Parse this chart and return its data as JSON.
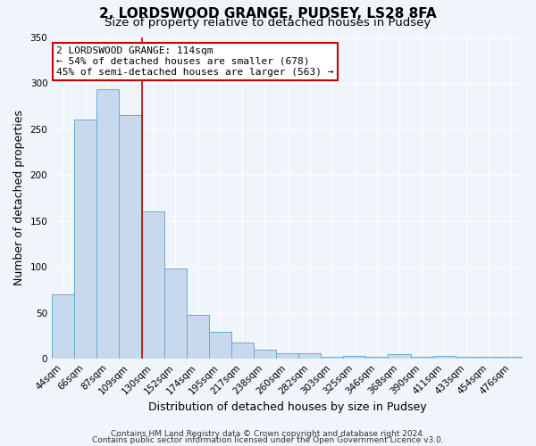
{
  "title": "2, LORDSWOOD GRANGE, PUDSEY, LS28 8FA",
  "subtitle": "Size of property relative to detached houses in Pudsey",
  "xlabel": "Distribution of detached houses by size in Pudsey",
  "ylabel": "Number of detached properties",
  "bar_labels": [
    "44sqm",
    "66sqm",
    "87sqm",
    "109sqm",
    "130sqm",
    "152sqm",
    "174sqm",
    "195sqm",
    "217sqm",
    "238sqm",
    "260sqm",
    "282sqm",
    "303sqm",
    "325sqm",
    "346sqm",
    "368sqm",
    "390sqm",
    "411sqm",
    "433sqm",
    "454sqm",
    "476sqm"
  ],
  "bar_values": [
    70,
    260,
    293,
    265,
    160,
    98,
    48,
    29,
    18,
    10,
    6,
    6,
    2,
    3,
    2,
    5,
    2,
    3,
    2,
    2,
    2
  ],
  "bar_color": "#c8d9ee",
  "bar_edge_color": "#6aaad4",
  "vline_x": 3.5,
  "vline_color": "#cc0000",
  "annotation_title": "2 LORDSWOOD GRANGE: 114sqm",
  "annotation_line1": "← 54% of detached houses are smaller (678)",
  "annotation_line2": "45% of semi-detached houses are larger (563) →",
  "annotation_box_color": "#ffffff",
  "annotation_box_edge": "#cc0000",
  "ylim": [
    0,
    350
  ],
  "yticks": [
    0,
    50,
    100,
    150,
    200,
    250,
    300,
    350
  ],
  "footer1": "Contains HM Land Registry data © Crown copyright and database right 2024.",
  "footer2": "Contains public sector information licensed under the Open Government Licence v3.0.",
  "bg_color": "#f0f4fb",
  "plot_bg_color": "#f0f4fb",
  "title_fontsize": 11,
  "subtitle_fontsize": 9.5,
  "axis_label_fontsize": 9,
  "tick_fontsize": 7.5,
  "footer_fontsize": 6.5,
  "annotation_fontsize": 8
}
